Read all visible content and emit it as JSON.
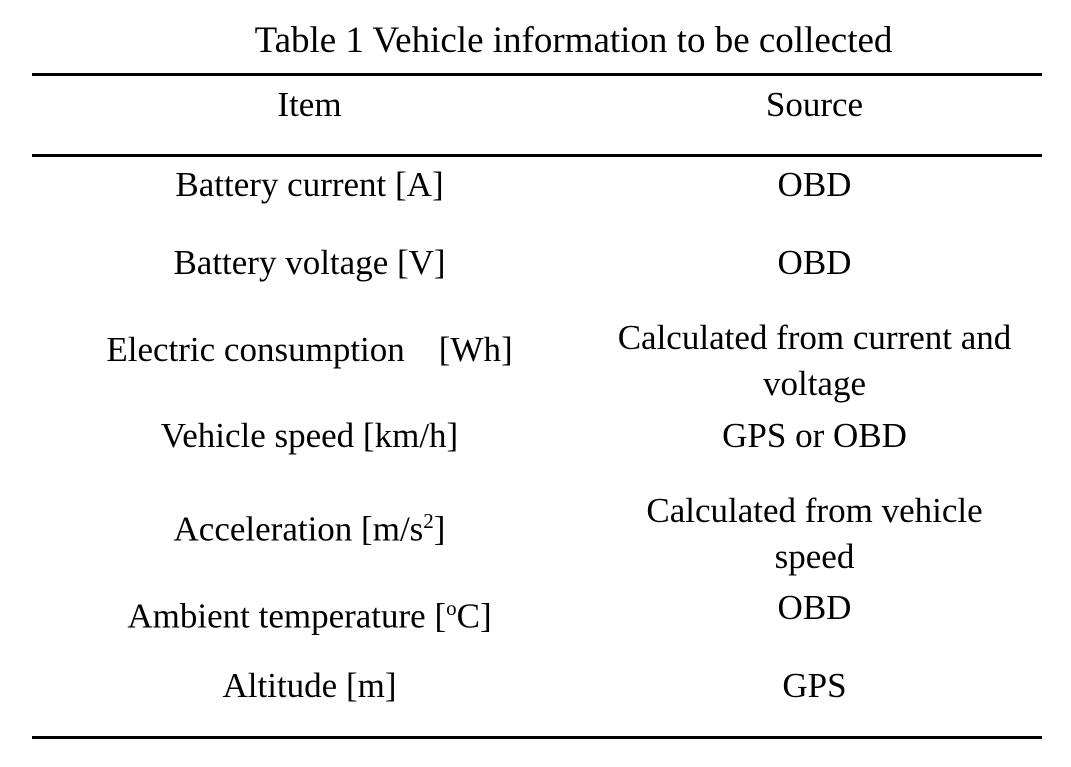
{
  "table": {
    "caption": "Table 1 Vehicle information to be collected",
    "headers": {
      "item": "Item",
      "source": "Source"
    },
    "rows": [
      {
        "item": "Battery current [A]",
        "source": "OBD"
      },
      {
        "item": "Battery voltage [V]",
        "source": "OBD"
      },
      {
        "item": "Electric consumption",
        "unit": "[Wh]",
        "source": "Calculated from current and voltage"
      },
      {
        "item": "Vehicle speed [km/h]",
        "source": "GPS or OBD"
      },
      {
        "item": "Acceleration [m/s",
        "sup": "2",
        "item_end": "]",
        "source": "Calculated from vehicle speed"
      },
      {
        "item": "Ambient temperature [",
        "sup": "o",
        "item_end": "C]",
        "source": "OBD"
      },
      {
        "item": "Altitude [m]",
        "source": "GPS"
      }
    ]
  }
}
